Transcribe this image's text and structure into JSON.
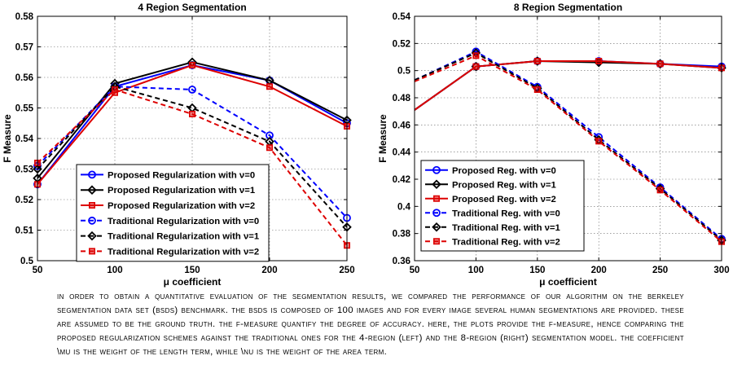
{
  "chart_data": [
    {
      "type": "line",
      "title": "4 Region Segmentation",
      "xlabel": "μ coefficient",
      "ylabel": "F Measure",
      "x": [
        50,
        100,
        150,
        200,
        250
      ],
      "xlim": [
        50,
        250
      ],
      "ylim": [
        0.5,
        0.58
      ],
      "xticks": [
        "50",
        "100",
        "150",
        "200",
        "250"
      ],
      "yticks": [
        "0.5",
        "0.51",
        "0.52",
        "0.53",
        "0.54",
        "0.55",
        "0.56",
        "0.57",
        "0.58"
      ],
      "grid": true,
      "legend_position": "lower-left",
      "series": [
        {
          "name": "Proposed Regularization with ν=0",
          "values": [
            0.525,
            0.557,
            0.564,
            0.559,
            0.545
          ],
          "color": "#0000ff",
          "dash": "solid",
          "marker": "circle"
        },
        {
          "name": "Proposed Regularization with ν=1",
          "values": [
            0.527,
            0.558,
            0.565,
            0.559,
            0.546
          ],
          "color": "#000000",
          "dash": "solid",
          "marker": "diamond"
        },
        {
          "name": "Proposed Regularization with ν=2",
          "values": [
            0.525,
            0.555,
            0.564,
            0.557,
            0.544
          ],
          "color": "#dd0000",
          "dash": "solid",
          "marker": "square"
        },
        {
          "name": "Traditional Regularization with ν=0",
          "values": [
            0.531,
            0.557,
            0.556,
            0.541,
            0.514
          ],
          "color": "#0000ff",
          "dash": "dashed",
          "marker": "circle"
        },
        {
          "name": "Traditional Regularization with ν=1",
          "values": [
            0.53,
            0.557,
            0.55,
            0.539,
            0.511
          ],
          "color": "#000000",
          "dash": "dashed",
          "marker": "diamond"
        },
        {
          "name": "Traditional Regularization with ν=2",
          "values": [
            0.532,
            0.556,
            0.548,
            0.537,
            0.505
          ],
          "color": "#dd0000",
          "dash": "dashed",
          "marker": "square"
        }
      ]
    },
    {
      "type": "line",
      "title": "8 Region Segmentation",
      "xlabel": "μ coefficient",
      "ylabel": "F Measure",
      "x": [
        50,
        100,
        150,
        200,
        250,
        300
      ],
      "xlim": [
        50,
        300
      ],
      "ylim": [
        0.36,
        0.54
      ],
      "xticks": [
        "50",
        "100",
        "150",
        "200",
        "250",
        "300"
      ],
      "yticks": [
        "0.36",
        "0.38",
        "0.4",
        "0.42",
        "0.44",
        "0.46",
        "0.48",
        "0.5",
        "0.52",
        "0.54"
      ],
      "grid": true,
      "legend_position": "lower-left",
      "series": [
        {
          "name": "Proposed Reg. with ν=0",
          "values": [
            0.471,
            0.503,
            0.507,
            0.507,
            0.505,
            0.503
          ],
          "color": "#0000ff",
          "dash": "solid",
          "marker": "circle"
        },
        {
          "name": "Proposed Reg. with ν=1",
          "values": [
            0.471,
            0.503,
            0.507,
            0.506,
            0.505,
            0.502
          ],
          "color": "#000000",
          "dash": "solid",
          "marker": "diamond"
        },
        {
          "name": "Proposed Reg. with ν=2",
          "values": [
            0.471,
            0.503,
            0.507,
            0.507,
            0.505,
            0.502
          ],
          "color": "#dd0000",
          "dash": "solid",
          "marker": "square"
        },
        {
          "name": "Traditional Reg. with ν=0",
          "values": [
            0.493,
            0.514,
            0.488,
            0.451,
            0.414,
            0.376
          ],
          "color": "#0000ff",
          "dash": "dashed",
          "marker": "circle"
        },
        {
          "name": "Traditional Reg. with ν=1",
          "values": [
            0.493,
            0.513,
            0.487,
            0.449,
            0.413,
            0.375
          ],
          "color": "#000000",
          "dash": "dashed",
          "marker": "diamond"
        },
        {
          "name": "Traditional Reg. with ν=2",
          "values": [
            0.492,
            0.511,
            0.486,
            0.448,
            0.412,
            0.374
          ],
          "color": "#dd0000",
          "dash": "dashed",
          "marker": "square"
        }
      ]
    }
  ],
  "caption": "In order to obtain a quantitative evaluation of the segmentation results, we compared the performance of our algorithm on the Berkeley Segmentation Data Set (BSDS) benchmark. The BSDS is composed of 100 images and for every image several human segmentations are provided. These are assumed to be the ground truth. The F-measure quantify the degree of accuracy. Here, the plots provide the F-measure, hence comparing the proposed regularization schemes against the traditional ones for the 4-region (Left) and the 8-region (Right) segmentation model. The coefficient \\mu is the weight of the length term, while \\nu is the weight of the area term."
}
